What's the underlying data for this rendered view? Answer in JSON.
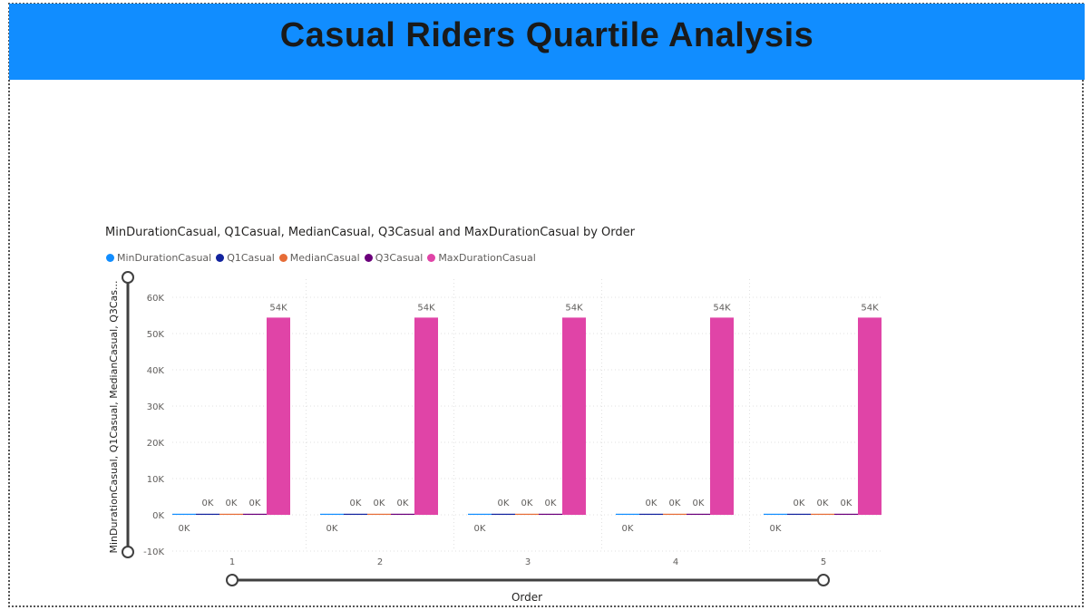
{
  "page": {
    "title": "Casual Riders Quartile Analysis",
    "banner_color": "#118DFF"
  },
  "chart_data": {
    "type": "bar",
    "title": "MinDurationCasual, Q1Casual, MedianCasual, Q3Casual and MaxDurationCasual by Order",
    "xlabel": "Order",
    "ylabel": "MinDurationCasual, Q1Casual, MedianCasual, Q3Cas...",
    "categories": [
      "1",
      "2",
      "3",
      "4",
      "5"
    ],
    "ylim": [
      -10000,
      60000
    ],
    "yticks": [
      -10000,
      0,
      10000,
      20000,
      30000,
      40000,
      50000,
      60000
    ],
    "ytick_labels": [
      "-10K",
      "0K",
      "10K",
      "20K",
      "30K",
      "40K",
      "50K",
      "60K"
    ],
    "grid": true,
    "legend_position": "top-left",
    "series": [
      {
        "name": "MinDurationCasual",
        "color": "#118DFF",
        "values": [
          0,
          0,
          0,
          0,
          0
        ],
        "labels": [
          "0K",
          "0K",
          "0K",
          "0K",
          "0K"
        ]
      },
      {
        "name": "Q1Casual",
        "color": "#12239E",
        "values": [
          300,
          300,
          300,
          300,
          300
        ],
        "labels": [
          "0K",
          "0K",
          "0K",
          "0K",
          "0K"
        ]
      },
      {
        "name": "MedianCasual",
        "color": "#E66C37",
        "values": [
          300,
          300,
          300,
          300,
          300
        ],
        "labels": [
          "0K",
          "0K",
          "0K",
          "0K",
          "0K"
        ]
      },
      {
        "name": "Q3Casual",
        "color": "#6B007B",
        "values": [
          300,
          300,
          300,
          300,
          300
        ],
        "labels": [
          "0K",
          "0K",
          "0K",
          "0K",
          "0K"
        ]
      },
      {
        "name": "MaxDurationCasual",
        "color": "#E044A7",
        "values": [
          54400,
          54400,
          54400,
          54400,
          54400
        ],
        "labels": [
          "54K",
          "54K",
          "54K",
          "54K",
          "54K"
        ]
      }
    ]
  }
}
